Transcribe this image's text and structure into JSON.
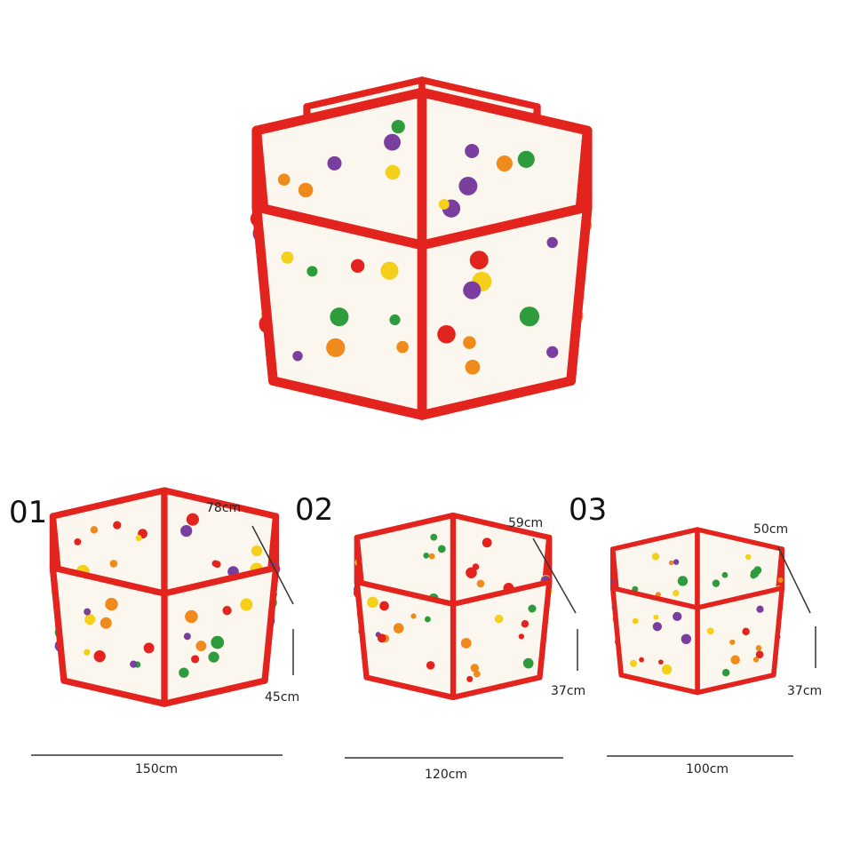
{
  "products": [
    {
      "label": "01",
      "side": "78cm",
      "height": "45cm",
      "width": "150cm"
    },
    {
      "label": "02",
      "side": "59cm",
      "height": "37cm",
      "width": "120cm"
    },
    {
      "label": "03",
      "side": "50cm",
      "height": "37cm",
      "width": "100cm"
    }
  ]
}
